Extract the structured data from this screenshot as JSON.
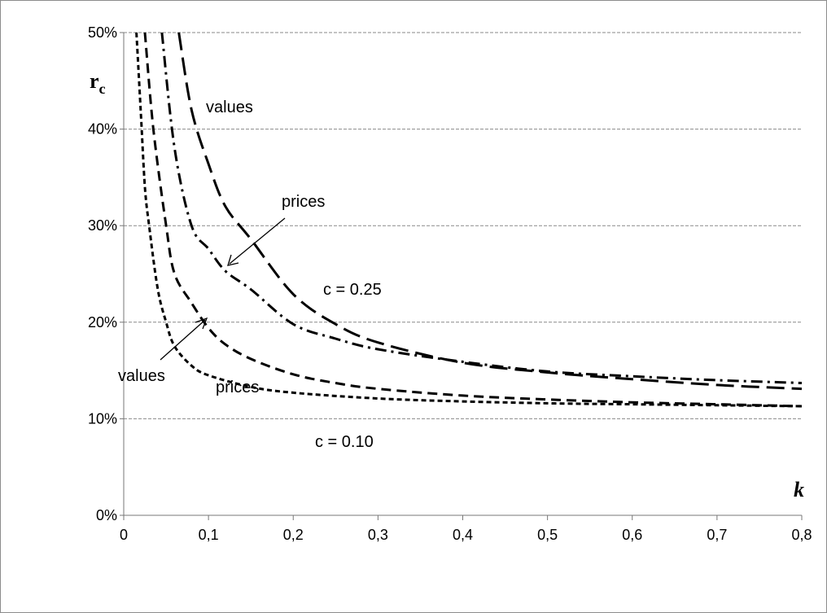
{
  "chart_data": {
    "type": "line",
    "xlabel": "k",
    "ylabel_main": "r",
    "ylabel_sub": "c",
    "xlim": [
      0,
      0.8
    ],
    "ylim": [
      0,
      0.5
    ],
    "x_ticks": [
      "0",
      "0,1",
      "0,2",
      "0,3",
      "0,4",
      "0,5",
      "0,6",
      "0,7",
      "0,8"
    ],
    "y_ticks": [
      "0%",
      "10%",
      "20%",
      "30%",
      "40%",
      "50%"
    ],
    "grid": "horizontal",
    "annotations": {
      "values_upper": "values",
      "prices_upper": "prices",
      "c_upper": "c = 0.25",
      "values_lower": "values",
      "prices_lower": "prices",
      "c_lower": "c = 0.10"
    },
    "series": [
      {
        "style": "long-dash",
        "x": [
          0.065,
          0.08,
          0.1,
          0.12,
          0.15,
          0.2,
          0.25,
          0.3,
          0.4,
          0.5,
          0.6,
          0.7,
          0.8
        ],
        "y": [
          0.5,
          0.42,
          0.364,
          0.32,
          0.286,
          0.229,
          0.198,
          0.179,
          0.158,
          0.148,
          0.141,
          0.135,
          0.131
        ]
      },
      {
        "style": "dash-dot",
        "x": [
          0.045,
          0.06,
          0.08,
          0.1,
          0.12,
          0.15,
          0.2,
          0.25,
          0.3,
          0.4,
          0.5,
          0.6,
          0.7,
          0.8
        ],
        "y": [
          0.5,
          0.38,
          0.3,
          0.276,
          0.253,
          0.234,
          0.198,
          0.183,
          0.172,
          0.159,
          0.149,
          0.144,
          0.14,
          0.137
        ]
      },
      {
        "style": "medium-dash",
        "x": [
          0.025,
          0.035,
          0.05,
          0.06,
          0.08,
          0.1,
          0.12,
          0.15,
          0.2,
          0.25,
          0.3,
          0.4,
          0.5,
          0.6,
          0.7,
          0.8
        ],
        "y": [
          0.5,
          0.4,
          0.3,
          0.25,
          0.22,
          0.194,
          0.177,
          0.162,
          0.146,
          0.137,
          0.131,
          0.124,
          0.12,
          0.117,
          0.115,
          0.113
        ]
      },
      {
        "style": "short-dash",
        "x": [
          0.015,
          0.02,
          0.025,
          0.03,
          0.04,
          0.05,
          0.06,
          0.08,
          0.1,
          0.15,
          0.2,
          0.3,
          0.4,
          0.5,
          0.6,
          0.7,
          0.8
        ],
        "y": [
          0.5,
          0.42,
          0.34,
          0.3,
          0.235,
          0.2,
          0.175,
          0.155,
          0.145,
          0.133,
          0.127,
          0.121,
          0.118,
          0.116,
          0.115,
          0.114,
          0.113
        ]
      }
    ]
  }
}
